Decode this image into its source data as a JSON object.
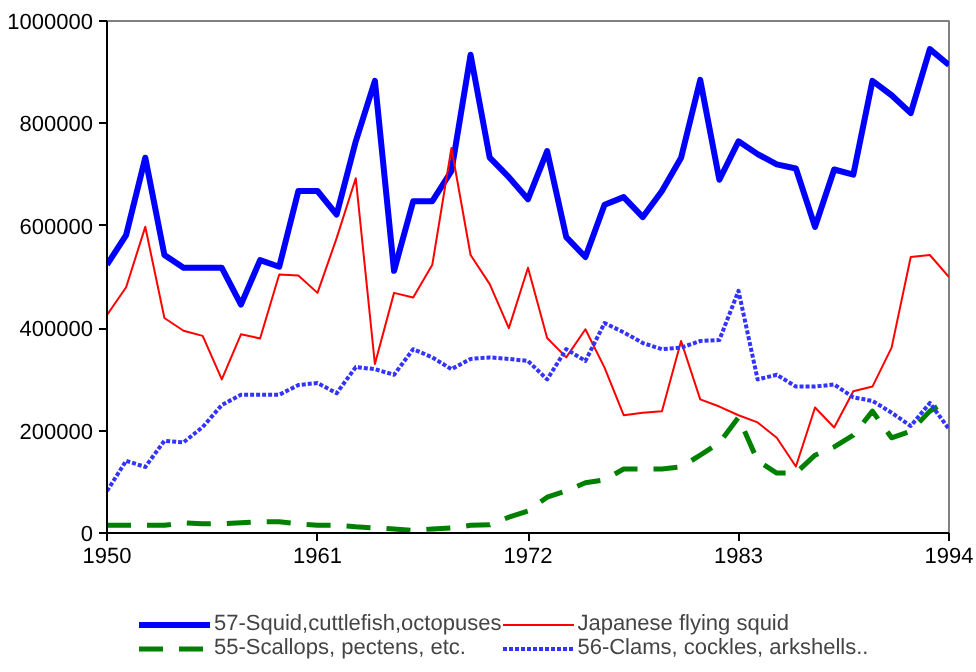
{
  "chart_data": {
    "type": "line",
    "x": [
      1950,
      1951,
      1952,
      1953,
      1954,
      1955,
      1956,
      1957,
      1958,
      1959,
      1960,
      1961,
      1962,
      1963,
      1964,
      1965,
      1966,
      1967,
      1968,
      1969,
      1970,
      1971,
      1972,
      1973,
      1974,
      1975,
      1976,
      1977,
      1978,
      1979,
      1980,
      1981,
      1982,
      1983,
      1984,
      1985,
      1986,
      1987,
      1988,
      1989,
      1990,
      1991,
      1992,
      1993,
      1994
    ],
    "series": [
      {
        "name": "57-Squid,cuttlefish,octopuses",
        "color": "#0000ff",
        "line_style": "solid",
        "values": [
          524000,
          582000,
          733000,
          543000,
          518000,
          518000,
          518000,
          446000,
          533000,
          520000,
          668000,
          668000,
          622000,
          765000,
          883000,
          512000,
          648000,
          648000,
          707000,
          934000,
          733000,
          695000,
          652000,
          746000,
          578000,
          539000,
          641000,
          656000,
          617000,
          668000,
          733000,
          885000,
          690000,
          765000,
          740000,
          720000,
          712000,
          598000,
          710000,
          700000,
          883000,
          855000,
          820000,
          945000,
          914000
        ]
      },
      {
        "name": "Japanese flying squid",
        "color": "#ff0000",
        "line_style": "solid",
        "values": [
          426000,
          480000,
          598000,
          420000,
          395000,
          385000,
          300000,
          388000,
          380000,
          505000,
          503000,
          469000,
          576000,
          693000,
          330000,
          469000,
          460000,
          524000,
          752000,
          543000,
          486000,
          400000,
          518000,
          381000,
          343000,
          398000,
          323000,
          230000,
          235000,
          238000,
          375000,
          261000,
          247000,
          230000,
          216000,
          186000,
          130000,
          245000,
          206000,
          277000,
          286000,
          362000,
          539000,
          543000,
          500000
        ]
      },
      {
        "name": "55-Scallops, pectens, etc.",
        "color": "#008000",
        "line_style": "dashed",
        "values": [
          15000,
          15000,
          15000,
          15000,
          20000,
          18000,
          18000,
          20000,
          22000,
          22000,
          18000,
          15000,
          15000,
          12000,
          10000,
          8000,
          5000,
          8000,
          10000,
          15000,
          16000,
          31000,
          43000,
          70000,
          82000,
          98000,
          104000,
          125000,
          125000,
          125000,
          129000,
          152000,
          176000,
          226000,
          141000,
          117000,
          117000,
          152000,
          168000,
          191000,
          238000,
          186000,
          199000,
          238000,
          261000
        ]
      },
      {
        "name": "56-Clams, cockles, arkshells..",
        "color": "#3333ff",
        "line_style": "dotted",
        "values": [
          82000,
          141000,
          129000,
          180000,
          177000,
          207000,
          250000,
          270000,
          270000,
          270000,
          289000,
          293000,
          273000,
          324000,
          320000,
          309000,
          359000,
          343000,
          320000,
          340000,
          343000,
          340000,
          336000,
          300000,
          359000,
          336000,
          410000,
          392000,
          371000,
          359000,
          362000,
          375000,
          377000,
          473000,
          300000,
          309000,
          286000,
          286000,
          290000,
          265000,
          258000,
          235000,
          209000,
          254000,
          203000
        ]
      }
    ],
    "xlim": [
      1950,
      1994
    ],
    "xticks": [
      1950,
      1961,
      1972,
      1983,
      1994
    ],
    "ylim": [
      0,
      1000000
    ],
    "yticks": [
      0,
      200000,
      400000,
      600000,
      800000,
      1000000
    ],
    "grid": false,
    "legend": "bottom"
  }
}
